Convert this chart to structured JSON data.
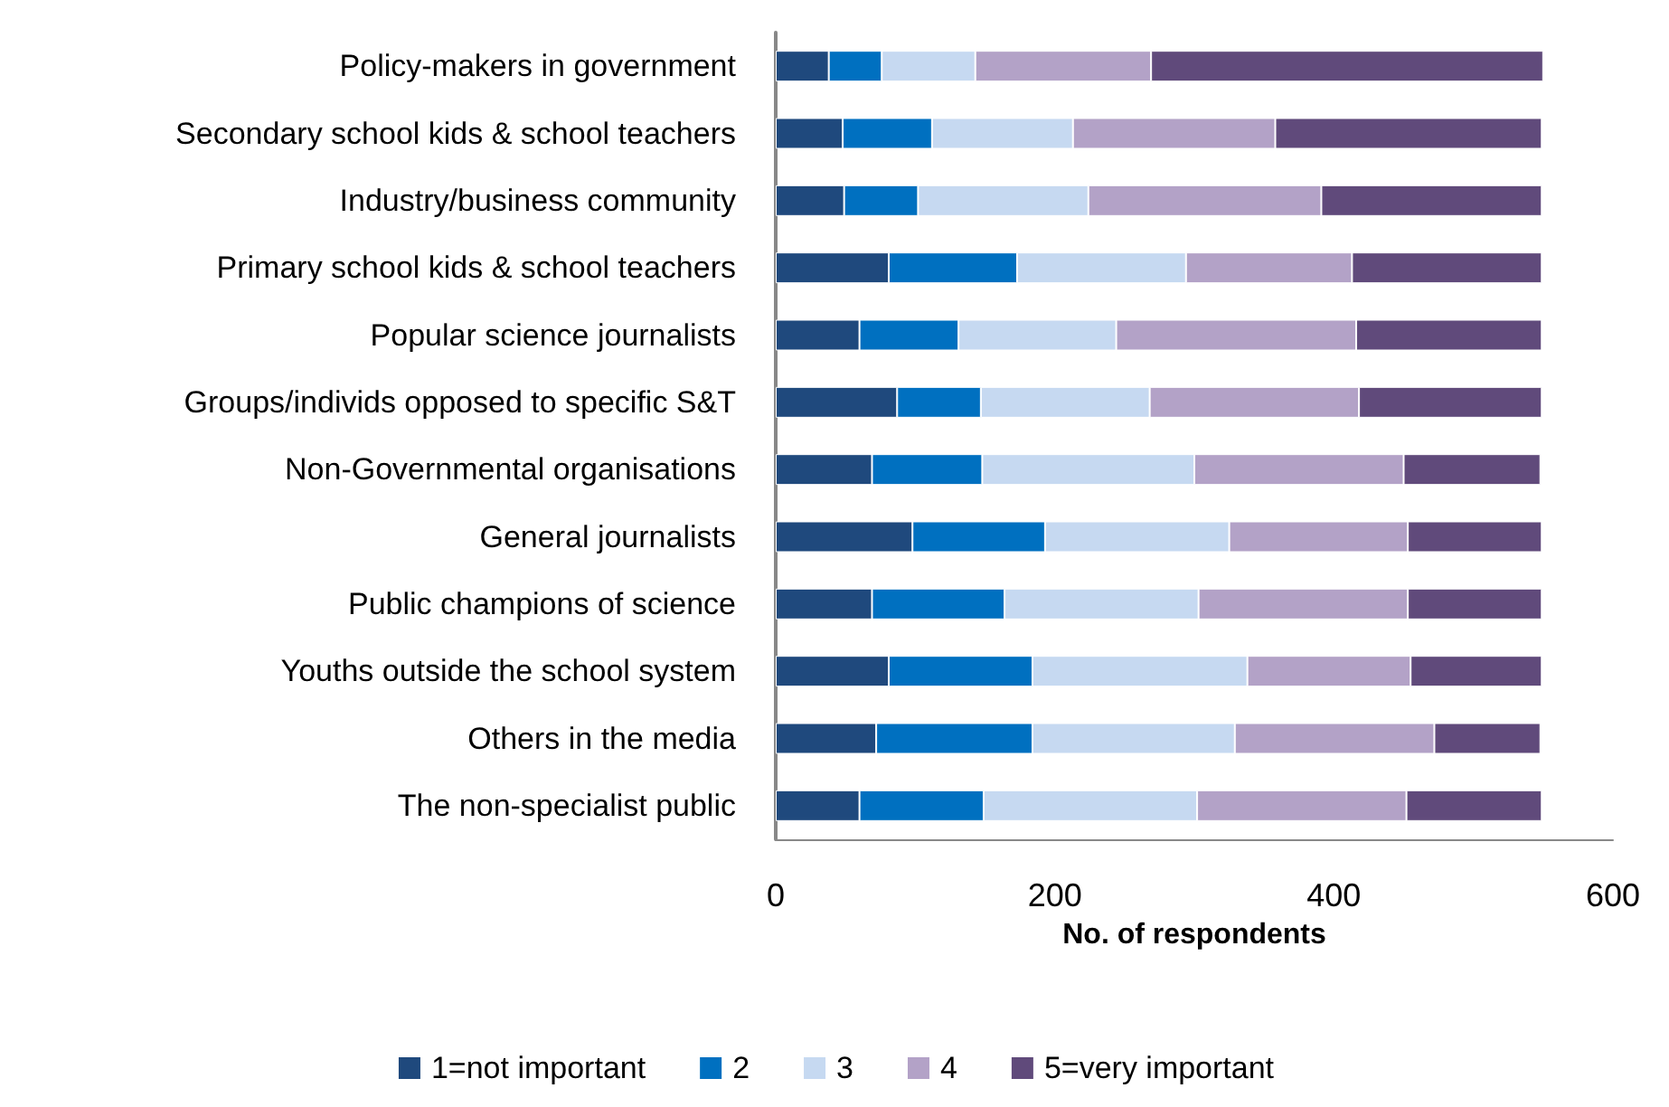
{
  "chart_data": {
    "type": "bar",
    "orientation": "horizontal",
    "stacked": true,
    "xlabel": "No. of respondents",
    "categories": [
      "Policy-makers in government",
      "Secondary school kids & school teachers",
      "Industry/business community",
      "Primary school kids & school teachers",
      "Popular science journalists",
      "Groups/individs opposed to specific S&T",
      "Non-Governmental organisations",
      "General journalists",
      "Public champions of science",
      "Youths outside the school system",
      "Others in the media",
      "The non-specialist public"
    ],
    "series": [
      {
        "name": "1=not important",
        "color": "#1f497d",
        "values": [
          38,
          48,
          49,
          81,
          60,
          87,
          69,
          98,
          69,
          81,
          72,
          60
        ]
      },
      {
        "name": "2",
        "color": "#0070c0",
        "values": [
          38,
          64,
          53,
          92,
          71,
          60,
          79,
          95,
          95,
          103,
          112,
          89
        ]
      },
      {
        "name": "3",
        "color": "#c6d9f1",
        "values": [
          67,
          101,
          122,
          121,
          113,
          121,
          152,
          132,
          139,
          154,
          145,
          153
        ]
      },
      {
        "name": "4",
        "color": "#b3a2c7",
        "values": [
          126,
          145,
          167,
          119,
          172,
          150,
          150,
          128,
          150,
          117,
          143,
          150
        ]
      },
      {
        "name": "5=very important",
        "color": "#604a7b",
        "values": [
          281,
          191,
          158,
          136,
          133,
          131,
          98,
          96,
          96,
          94,
          76,
          97
        ]
      }
    ],
    "xlim": [
      0,
      600
    ],
    "xticks": [
      0,
      200,
      400,
      600
    ],
    "grid": false,
    "legend": "bottom"
  }
}
